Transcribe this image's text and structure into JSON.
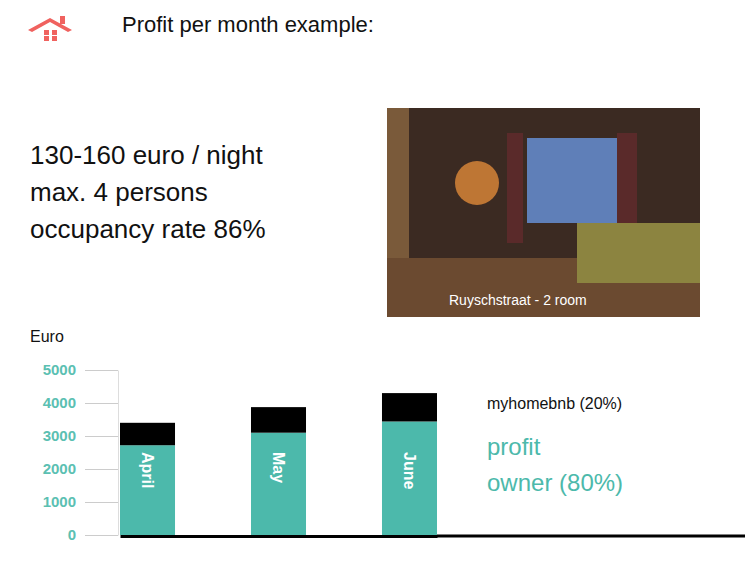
{
  "chart_data": {
    "type": "bar",
    "title": "Profit per month example:",
    "annotations": [
      "130-160 euro / night",
      "max. 4 persons",
      "occupancy rate 86%"
    ],
    "image_caption": "Ruyschstraat - 2 room",
    "y_label": "Euro",
    "categories": [
      "April",
      "May",
      "June"
    ],
    "series": [
      {
        "name": "profit owner (80%)",
        "color": "#4cb9ab",
        "values": [
          2720,
          3100,
          3440
        ]
      },
      {
        "name": "myhomebnb (20%)",
        "color": "#000000",
        "values": [
          680,
          775,
          860
        ]
      }
    ],
    "stacked": true,
    "ylim": [
      0,
      5000
    ],
    "yticks": [
      0,
      1000,
      2000,
      3000,
      4000,
      5000
    ],
    "grid": false,
    "legend": "right"
  }
}
